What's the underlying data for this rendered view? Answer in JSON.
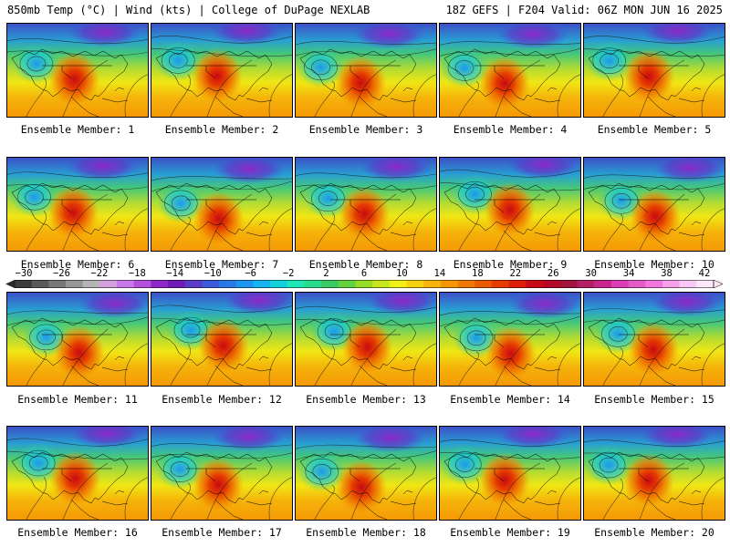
{
  "header": {
    "left_title": "850mb Temp (°C) | Wind (kts) | College of DuPage NEXLAB",
    "right_title": "18Z GEFS | F204 Valid: 06Z MON JUN 16 2025"
  },
  "panels": [
    {
      "label": "Ensemble Member: 1"
    },
    {
      "label": "Ensemble Member: 2"
    },
    {
      "label": "Ensemble Member: 3"
    },
    {
      "label": "Ensemble Member: 4"
    },
    {
      "label": "Ensemble Member: 5"
    },
    {
      "label": "Ensemble Member: 6"
    },
    {
      "label": "Ensemble Member: 7"
    },
    {
      "label": "Ensemble Member: 8"
    },
    {
      "label": "Ensemble Member: 9"
    },
    {
      "label": "Ensemble Member: 10"
    },
    {
      "label": "Ensemble Member: 11"
    },
    {
      "label": "Ensemble Member: 12"
    },
    {
      "label": "Ensemble Member: 13"
    },
    {
      "label": "Ensemble Member: 14"
    },
    {
      "label": "Ensemble Member: 15"
    },
    {
      "label": "Ensemble Member: 16"
    },
    {
      "label": "Ensemble Member: 17"
    },
    {
      "label": "Ensemble Member: 18"
    },
    {
      "label": "Ensemble Member: 19"
    },
    {
      "label": "Ensemble Member: 20"
    }
  ],
  "colorbar": {
    "tick_labels": [
      "−30",
      "−26",
      "−22",
      "−18",
      "−14",
      "−10",
      "−6",
      "−2",
      "2",
      "6",
      "10",
      "14",
      "18",
      "22",
      "26",
      "30",
      "34",
      "38",
      "42"
    ],
    "colors": [
      "#3c3c3c",
      "#5a5a5a",
      "#787878",
      "#969696",
      "#b4b4b4",
      "#d2a0dc",
      "#c878e6",
      "#b450dc",
      "#8c28c8",
      "#6e1eb4",
      "#5a3cc8",
      "#3c5adc",
      "#2878e6",
      "#1e96f0",
      "#14b4f0",
      "#14d2dc",
      "#1ee6b4",
      "#28dc8c",
      "#3cc864",
      "#64d23c",
      "#96dc28",
      "#c8e61e",
      "#f0f014",
      "#f5d20f",
      "#f5b40a",
      "#f59605",
      "#f07800",
      "#eb5a00",
      "#e63c00",
      "#dc1e0a",
      "#c80a14",
      "#b40a28",
      "#a0143c",
      "#b41e64",
      "#c8288c",
      "#dc3cb4",
      "#e65ac8",
      "#f078dc",
      "#f5a0eb",
      "#fac8f5",
      "#ffe6fa"
    ]
  }
}
